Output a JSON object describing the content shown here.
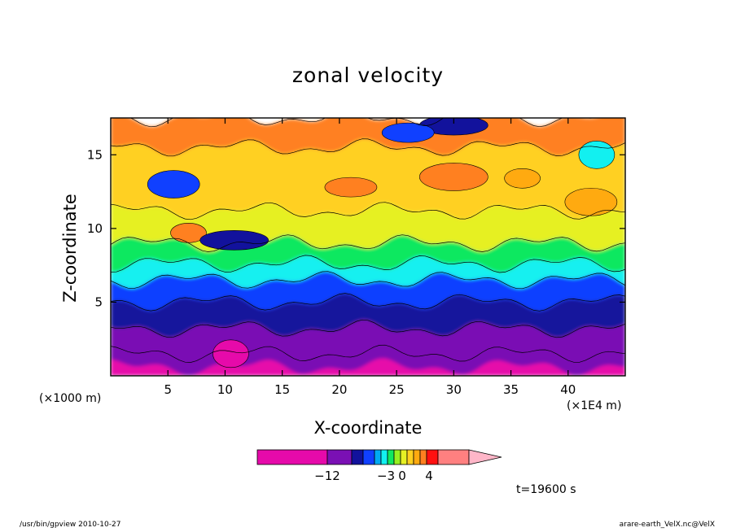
{
  "chart_data": {
    "type": "heatmap",
    "title": "zonal velocity",
    "xlabel": "X-coordinate",
    "ylabel": "Z-coordinate",
    "x_unit_left": "(×1000 m)",
    "x_unit_right": "(×1E4 m)",
    "xlim": [
      0,
      45
    ],
    "ylim": [
      0,
      17.5
    ],
    "x_ticks": [
      5,
      10,
      15,
      20,
      25,
      30,
      35,
      40
    ],
    "y_ticks": [
      5,
      10,
      15
    ],
    "colorbar": {
      "levels": [
        -12,
        -3,
        0,
        4
      ],
      "label_texts": [
        "−12",
        "−3",
        "0",
        "4"
      ],
      "colors": [
        "#e60aaa",
        "#7a10b4",
        "#12129c",
        "#1040ff",
        "#00aaf2",
        "#12f0f0",
        "#10e860",
        "#98f020",
        "#e6f024",
        "#ffd020",
        "#ffaa10",
        "#ff8020",
        "#ff1010",
        "#ff8080",
        "#ffb6c8"
      ]
    },
    "annotation": "t=19600 s",
    "field_bands": [
      {
        "z_from": 0.0,
        "z_to": 1.5,
        "color": "#e60aaa"
      },
      {
        "z_from": 0.6,
        "z_to": 3.2,
        "color": "#7a10b4"
      },
      {
        "z_from": 3.2,
        "z_to": 5.0,
        "color": "#12129c"
      },
      {
        "z_from": 5.0,
        "z_to": 6.5,
        "color": "#1040ff"
      },
      {
        "z_from": 6.5,
        "z_to": 7.6,
        "color": "#12f0f0"
      },
      {
        "z_from": 7.6,
        "z_to": 9.0,
        "color": "#10e860"
      },
      {
        "z_from": 9.0,
        "z_to": 11.2,
        "color": "#e6f024"
      },
      {
        "z_from": 11.2,
        "z_to": 15.5,
        "color": "#ffd020"
      },
      {
        "z_from": 15.5,
        "z_to": 17.5,
        "color": "#ff8020"
      }
    ],
    "features": [
      {
        "x": 6.8,
        "z": 9.7,
        "color": "#ff8020"
      },
      {
        "x": 5.5,
        "z": 13.0,
        "color": "#1040ff"
      },
      {
        "x": 10.8,
        "z": 9.2,
        "color": "#12129c"
      },
      {
        "x": 10.5,
        "z": 1.5,
        "color": "#e60aaa"
      },
      {
        "x": 21.0,
        "z": 12.8,
        "color": "#ff8020"
      },
      {
        "x": 30.0,
        "z": 13.5,
        "color": "#ff8020"
      },
      {
        "x": 36.0,
        "z": 13.4,
        "color": "#ffaa10"
      },
      {
        "x": 42.0,
        "z": 11.8,
        "color": "#ffaa10"
      },
      {
        "x": 30.0,
        "z": 17.0,
        "color": "#12129c"
      },
      {
        "x": 42.5,
        "z": 15.0,
        "color": "#12f0f0"
      },
      {
        "x": 26.0,
        "z": 16.5,
        "color": "#1040ff"
      }
    ]
  },
  "footer": {
    "left": "/usr/bin/gpview   2010-10-27",
    "right": "arare-earth_VelX.nc@VelX"
  }
}
